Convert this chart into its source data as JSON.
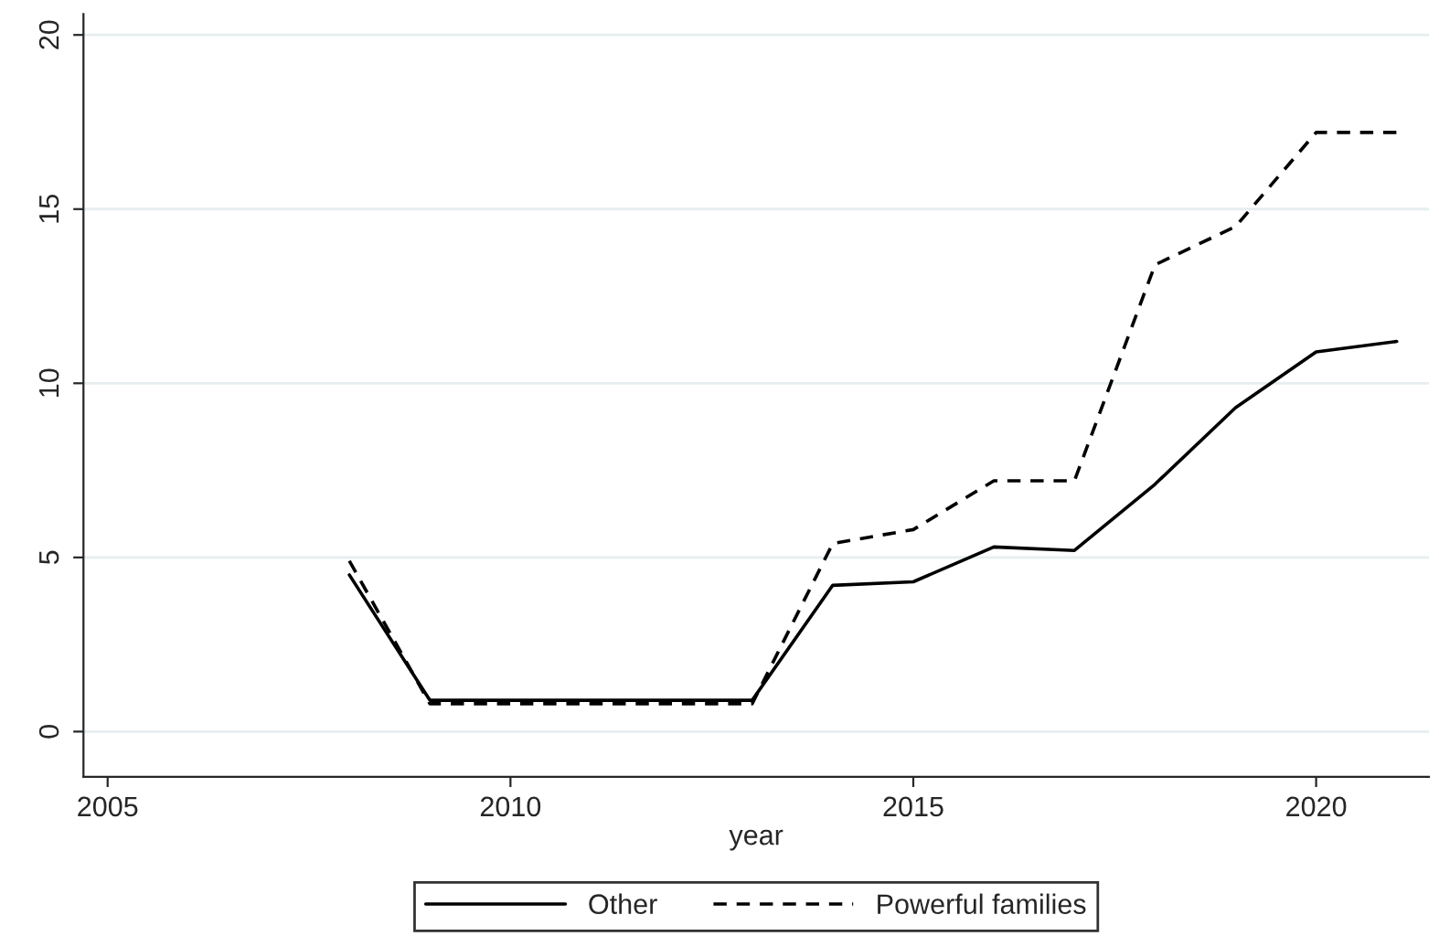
{
  "chart_data": {
    "type": "line",
    "xlabel": "year",
    "x": [
      2008,
      2009,
      2010,
      2011,
      2012,
      2013,
      2014,
      2015,
      2016,
      2017,
      2018,
      2019,
      2020,
      2021
    ],
    "series": [
      {
        "name": "Other",
        "color": "#000000",
        "line_style": "solid",
        "values": [
          4.5,
          0.9,
          0.9,
          0.9,
          0.9,
          0.9,
          4.2,
          4.3,
          5.3,
          5.2,
          7.1,
          9.3,
          10.9,
          11.2
        ]
      },
      {
        "name": "Powerful families",
        "color": "#000000",
        "line_style": "dashed",
        "values": [
          4.9,
          0.8,
          0.8,
          0.8,
          0.8,
          0.8,
          5.4,
          5.8,
          7.2,
          7.2,
          13.4,
          14.5,
          17.2,
          17.2
        ]
      }
    ],
    "xlim": [
      2004.7,
      2021.4
    ],
    "xticks": [
      2005,
      2010,
      2015,
      2020
    ],
    "ylim": [
      -1.3,
      20.6
    ],
    "yticks": [
      0,
      5,
      10,
      15,
      20
    ],
    "grid": "y",
    "legend": "bottom",
    "marker": "none"
  }
}
